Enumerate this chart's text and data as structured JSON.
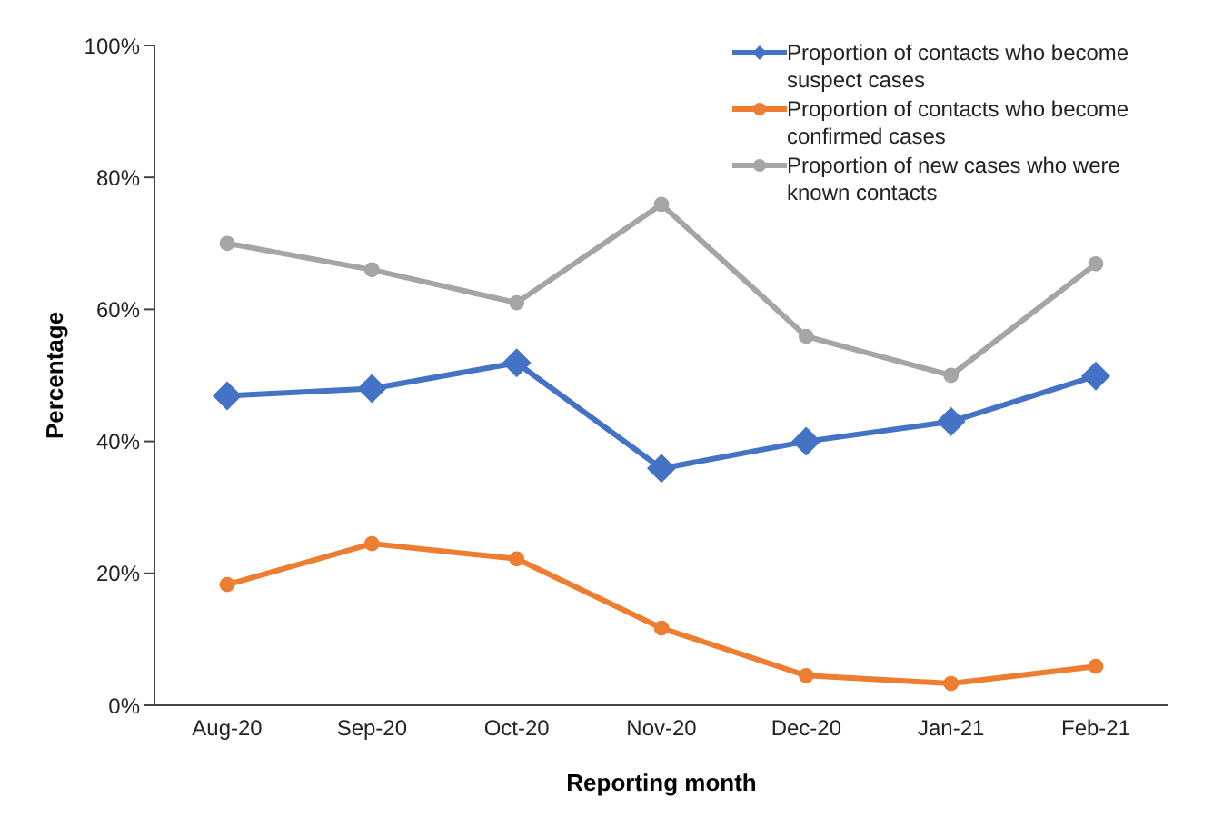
{
  "chart_data": {
    "type": "line",
    "xlabel": "Reporting month",
    "ylabel": "Percentage",
    "categories": [
      "Aug-20",
      "Sep-20",
      "Oct-20",
      "Nov-20",
      "Dec-20",
      "Jan-21",
      "Feb-21"
    ],
    "series": [
      {
        "name": "Proportion of contacts who become suspect cases",
        "color": "#4472c4",
        "marker": "diamond",
        "values": [
          46.9,
          48,
          51.9,
          35.9,
          40,
          43,
          49.9
        ]
      },
      {
        "name": "Proportion of contacts who become confirmed cases",
        "color": "#ed7d31",
        "marker": "circle",
        "values": [
          18.3,
          24.5,
          22.2,
          11.7,
          4.5,
          3.3,
          5.9
        ]
      },
      {
        "name": "Proportion of new cases who were known contacts",
        "color": "#a5a5a5",
        "marker": "circle",
        "values": [
          70,
          66,
          61,
          75.9,
          55.9,
          50,
          66.9
        ]
      }
    ],
    "ylim": [
      0,
      100
    ],
    "yticks": [
      {
        "value": 0,
        "label": "0%"
      },
      {
        "value": 20,
        "label": "20%"
      },
      {
        "value": 40,
        "label": "40%"
      },
      {
        "value": 60,
        "label": "60%"
      },
      {
        "value": 80,
        "label": "80%"
      },
      {
        "value": 100,
        "label": "100%"
      }
    ],
    "grid": false,
    "legend": "top right",
    "line_style": "solid"
  }
}
